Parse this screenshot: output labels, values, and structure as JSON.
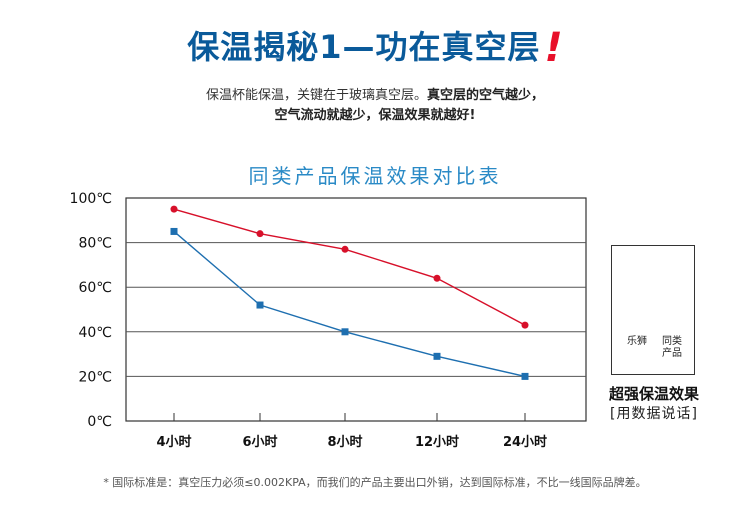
{
  "header": {
    "headline": "保温揭秘1—功在真空层",
    "headline_mark": "!",
    "line1_normal": "保温杯能保温，关键在于玻璃真空层。",
    "line1_bold": "真空层的空气越少，",
    "line2_bold": "空气流动就越少，保温效果就越好!"
  },
  "chart_data": {
    "type": "line",
    "title": "同类产品保温效果对比表",
    "categories": [
      "4小时",
      "6小时",
      "8小时",
      "12小时",
      "24小时"
    ],
    "y_ticks": [
      "100℃",
      "80℃",
      "60℃",
      "40℃",
      "20℃",
      "0℃"
    ],
    "ylim": [
      0,
      100
    ],
    "grid": true,
    "series": [
      {
        "name": "乐狮",
        "values": [
          95,
          84,
          77,
          64,
          43
        ],
        "color": "#d7102a",
        "marker": "circle"
      },
      {
        "name": "同类产品",
        "values": [
          85,
          52,
          40,
          29,
          20
        ],
        "color": "#1e6fb0",
        "marker": "square"
      }
    ],
    "legend": {
      "placement": "right",
      "labels": [
        "乐狮",
        "同类\n产品"
      ],
      "caption": "超强保温效果",
      "subcaption": "[用数据说话]"
    }
  },
  "footnote": "* 国际标准是：真空压力必须≤0.002KPA，而我们的产品主要出口外销，达到国际标准，不比一线国际品牌差。"
}
